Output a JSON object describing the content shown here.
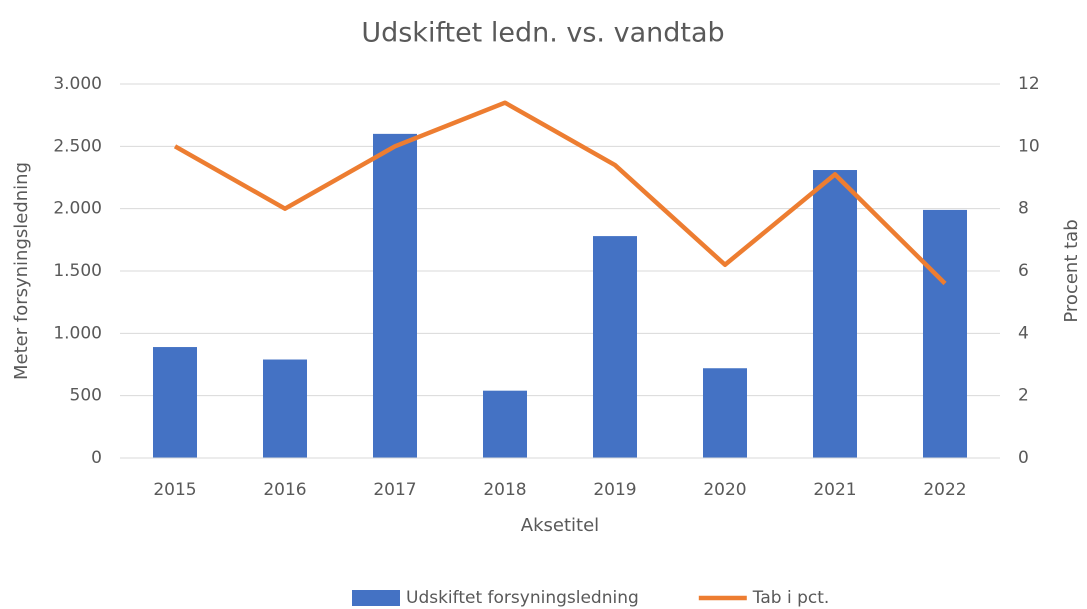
{
  "chart_data": {
    "type": "bar",
    "title": "Udskiftet ledn. vs. vandtab",
    "x_label": "Aksetitel",
    "y_label": "Meter forsyningsledning",
    "y2_label": "Procent tab",
    "categories": [
      "2015",
      "2016",
      "2017",
      "2018",
      "2019",
      "2020",
      "2021",
      "2022"
    ],
    "series": [
      {
        "name": "Udskiftet forsyningsledning",
        "type": "bar",
        "color": "#4472c4",
        "values": [
          890,
          790,
          2600,
          540,
          1780,
          720,
          2310,
          1990
        ]
      },
      {
        "name": "Tab i pct.",
        "type": "line",
        "axis": "y2",
        "color": "#ed7d31",
        "values": [
          10,
          8,
          10,
          11.4,
          9.4,
          6.2,
          9.1,
          5.6
        ]
      }
    ],
    "ylim": [
      0,
      3000
    ],
    "yticks": [
      0,
      500,
      {
        "value": 1000,
        "label": "1.000"
      },
      {
        "value": 1500,
        "label": "1.500"
      },
      {
        "value": 2000,
        "label": "2.000"
      },
      {
        "value": 2500,
        "label": "2.500"
      },
      {
        "value": 3000,
        "label": "3.000"
      }
    ],
    "y2lim": [
      0,
      12
    ],
    "y2ticks": [
      0,
      2,
      4,
      6,
      8,
      10,
      12
    ],
    "grid": true,
    "legend": "bottom"
  }
}
